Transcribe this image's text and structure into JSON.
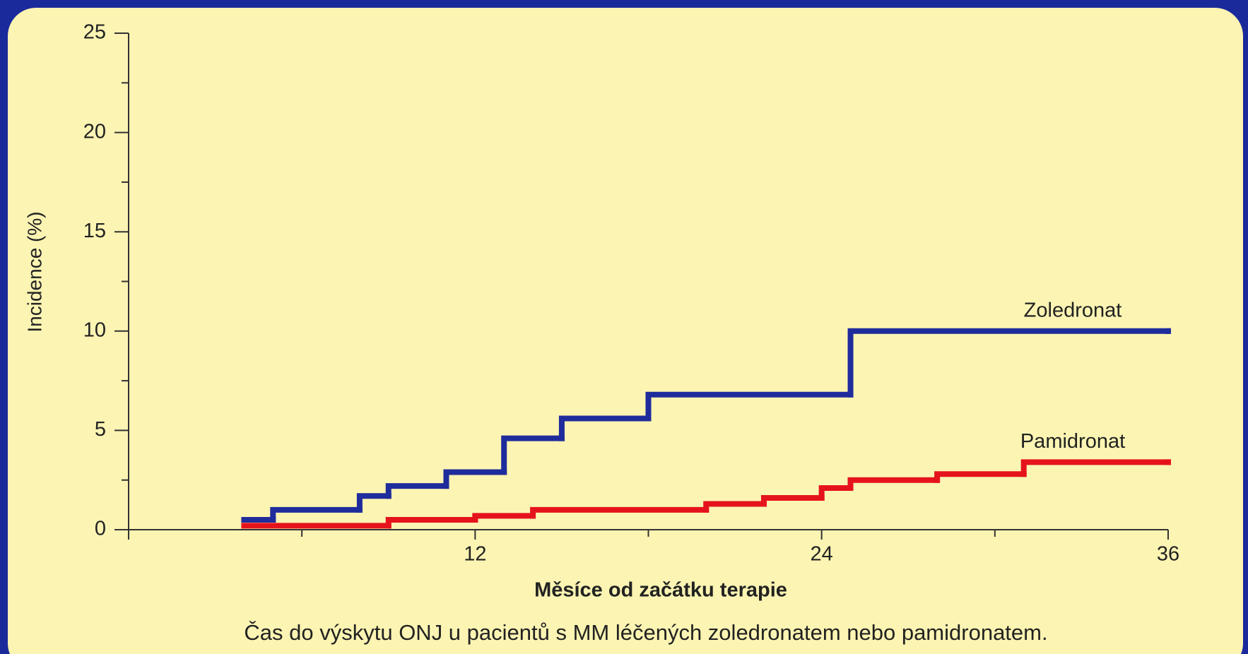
{
  "chart_data": {
    "type": "step-line",
    "xlabel": "Měsíce od začátku terapie",
    "ylabel": "Incidence (%)",
    "caption": "Čas do výskytu ONJ u pacientů s MM léčených zoledronatem nebo pamidronatem.",
    "xlim": [
      0,
      36
    ],
    "xticks": [
      12,
      24,
      36
    ],
    "xminor_ticks": [
      6,
      18,
      30
    ],
    "ylim": [
      0,
      25
    ],
    "yticks": [
      0,
      5,
      10,
      15,
      20,
      25
    ],
    "yminor_ticks": [
      2.5,
      7.5,
      12.5,
      17.5,
      22.5
    ],
    "series": [
      {
        "name": "Zoledronat",
        "color": "#1f2d9c",
        "x": [
          4,
          5,
          8,
          9,
          11,
          13,
          15,
          18,
          25,
          36
        ],
        "values": [
          0.5,
          1,
          1.7,
          2.2,
          2.9,
          4.6,
          5.6,
          6.8,
          10,
          10
        ]
      },
      {
        "name": "Pamidronat",
        "color": "#e5141c",
        "x": [
          4,
          9,
          12,
          14,
          20,
          22,
          24,
          25,
          28,
          31,
          36
        ],
        "values": [
          0.2,
          0.5,
          0.7,
          1,
          1.3,
          1.6,
          2.1,
          2.5,
          2.8,
          3.4,
          3.4
        ]
      }
    ]
  }
}
